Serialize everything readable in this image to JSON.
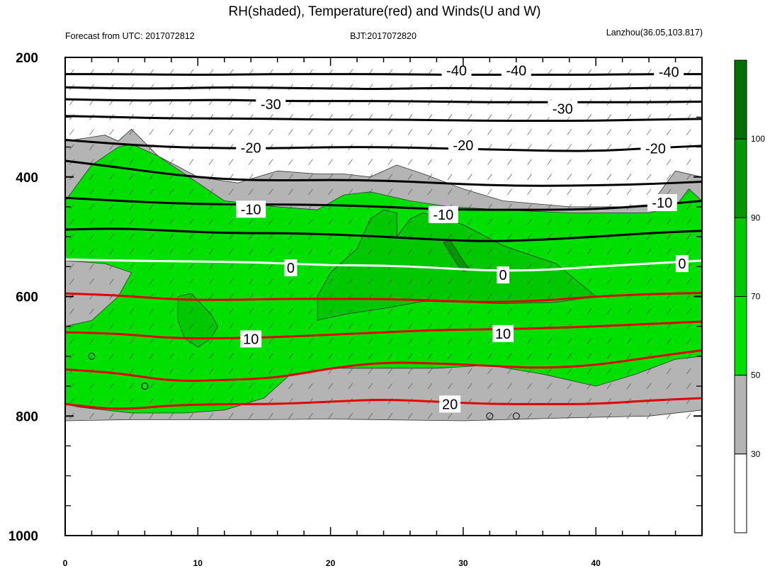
{
  "header": {
    "title": "RH(shaded), Temperature(red) and Winds(U and W)",
    "left": "Forecast from UTC: 2017072812",
    "center": "BJT:2017072820",
    "right": "Lanzhou(36.05,103.817)"
  },
  "chart_data": {
    "type": "heatmap",
    "title": "RH(shaded), Temperature(red) and Winds(U and W)",
    "xlim": [
      0,
      48
    ],
    "ylim": [
      1000,
      200
    ],
    "x_ticks": [
      0,
      10,
      20,
      30,
      40
    ],
    "x_tick_labels": [
      "0",
      "10",
      "20",
      "30",
      "40"
    ],
    "y_ticks": [
      200,
      400,
      600,
      800,
      1000
    ],
    "y_tick_labels": [
      "200",
      "400",
      "600",
      "800",
      "1000"
    ],
    "grid": false,
    "colorbar": {
      "levels": [
        30,
        50,
        70,
        90,
        100
      ],
      "labels": [
        "30",
        "50",
        "70",
        "90",
        "100"
      ],
      "colors": [
        "#ffffff",
        "#b4b4b4",
        "#00e000",
        "#00c800",
        "#009600",
        "#007000"
      ]
    },
    "rh_regions": [
      {
        "level": "30-50",
        "color": "#b4b4b4",
        "pressure_top": [
          340,
          330,
          340,
          320,
          365,
          400,
          410,
          390,
          395,
          395,
          400,
          380,
          395,
          420,
          440,
          450,
          450,
          390,
          400
        ],
        "x": [
          0,
          3,
          4,
          5,
          7,
          10,
          13,
          16,
          19,
          21,
          23,
          25,
          27,
          30,
          33,
          38,
          44,
          46,
          48
        ]
      },
      {
        "level": "50-70",
        "color": "#00e000"
      },
      {
        "level": "70-90",
        "color": "#00c800"
      },
      {
        "level": "90-100",
        "color": "#009600"
      }
    ],
    "temperature_contours": [
      {
        "value": 20,
        "label": "20",
        "color": "#e00000"
      },
      {
        "value": 10,
        "label": "10",
        "color": "#e00000"
      },
      {
        "value": 0,
        "label": "0",
        "color": "#ffffff"
      },
      {
        "value": -10,
        "label": "-10",
        "color": "#000000"
      },
      {
        "value": -20,
        "label": "-20",
        "color": "#000000"
      },
      {
        "value": -30,
        "label": "-30",
        "color": "#000000"
      },
      {
        "value": -40,
        "label": "-40",
        "color": "#000000"
      }
    ],
    "temperature_lines": {
      "x": [
        0,
        4,
        8,
        12,
        16,
        20,
        24,
        28,
        32,
        36,
        40,
        44,
        48
      ],
      "series": [
        {
          "name": "-40a",
          "color": "#000000",
          "p": [
            228,
            228,
            229,
            229,
            228,
            228,
            228,
            229,
            229,
            229,
            229,
            228,
            228
          ]
        },
        {
          "name": "-40b",
          "color": "#000000",
          "p": [
            250,
            252,
            252,
            250,
            251,
            252,
            253,
            251,
            252,
            253,
            253,
            251,
            251
          ]
        },
        {
          "name": "-30a",
          "color": "#000000",
          "p": [
            270,
            272,
            272,
            271,
            273,
            273,
            273,
            274,
            275,
            275,
            275,
            275,
            274
          ]
        },
        {
          "name": "-30b",
          "color": "#000000",
          "p": [
            298,
            300,
            302,
            302,
            303,
            304,
            304,
            305,
            306,
            306,
            306,
            304,
            303
          ]
        },
        {
          "name": "-20a",
          "color": "#000000",
          "p": [
            338,
            345,
            350,
            352,
            352,
            350,
            350,
            352,
            354,
            356,
            357,
            352,
            348
          ]
        },
        {
          "name": "-20b",
          "color": "#000000",
          "p": [
            373,
            384,
            396,
            404,
            406,
            405,
            406,
            410,
            414,
            415,
            414,
            412,
            408
          ]
        },
        {
          "name": "-10a",
          "color": "#000000",
          "p": [
            435,
            440,
            444,
            446,
            446,
            447,
            450,
            454,
            455,
            455,
            454,
            448,
            440
          ]
        },
        {
          "name": "-10b",
          "color": "#000000",
          "p": [
            488,
            486,
            490,
            494,
            494,
            496,
            500,
            505,
            508,
            505,
            500,
            494,
            490
          ]
        },
        {
          "name": "0",
          "color": "#ffffff",
          "p": [
            538,
            540,
            541,
            542,
            544,
            548,
            548,
            552,
            557,
            556,
            550,
            545,
            540
          ]
        },
        {
          "name": "10a",
          "color": "#e00000",
          "p": [
            595,
            598,
            605,
            606,
            604,
            604,
            604,
            607,
            610,
            607,
            600,
            596,
            594
          ]
        },
        {
          "name": "10b",
          "color": "#e00000",
          "p": [
            660,
            662,
            670,
            670,
            668,
            664,
            660,
            656,
            655,
            653,
            650,
            646,
            642
          ]
        },
        {
          "name": "20a",
          "color": "#e00000",
          "p": [
            722,
            728,
            742,
            740,
            736,
            720,
            710,
            712,
            716,
            720,
            715,
            702,
            690
          ]
        },
        {
          "name": "20b",
          "color": "#e00000",
          "p": [
            780,
            790,
            782,
            780,
            780,
            776,
            772,
            776,
            780,
            780,
            780,
            774,
            770
          ]
        }
      ]
    },
    "observation_markers": [
      {
        "x": 2,
        "p": 700
      },
      {
        "x": 6,
        "p": 750
      },
      {
        "x": 32,
        "p": 800
      },
      {
        "x": 34,
        "p": 800
      }
    ]
  }
}
